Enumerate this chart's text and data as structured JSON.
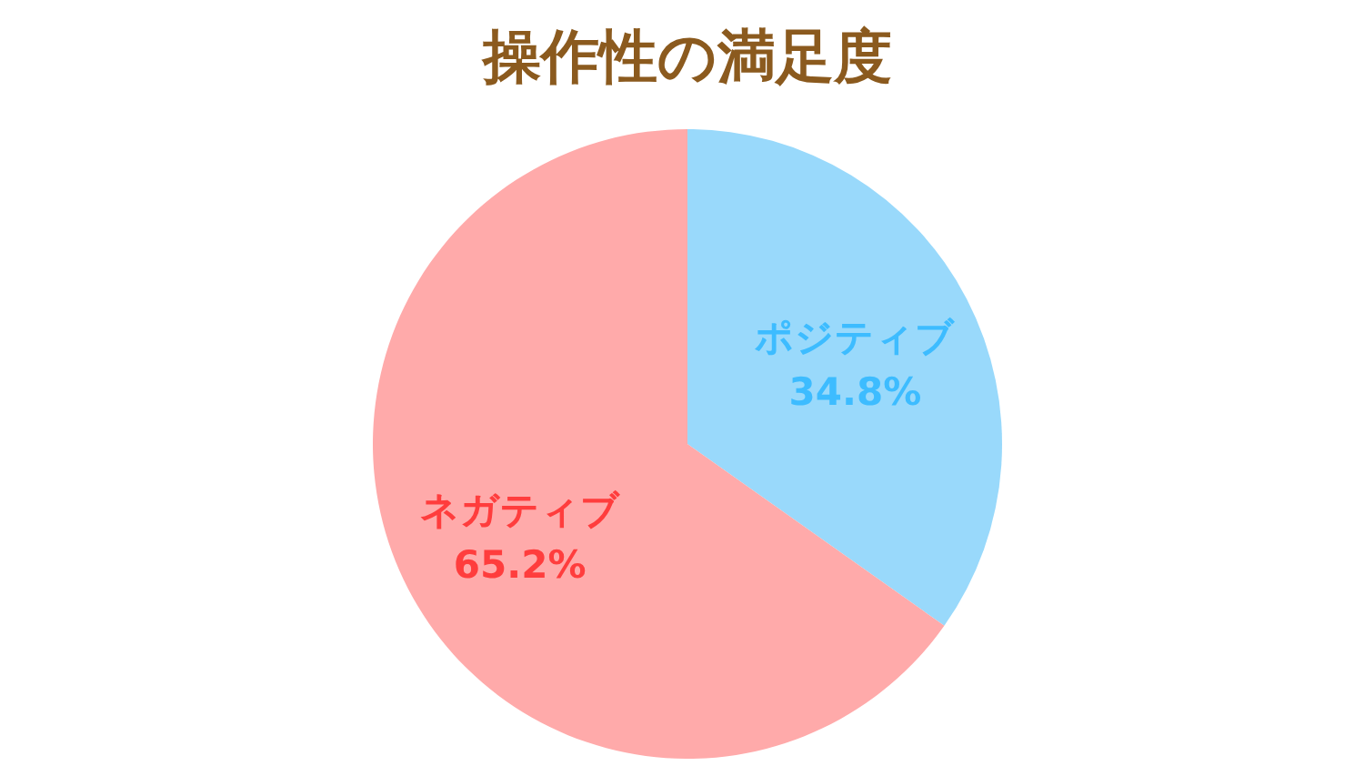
{
  "chart_data": {
    "type": "pie",
    "title": "操作性の満足度",
    "categories": [
      "ポジティブ",
      "ネガティブ"
    ],
    "values": [
      34.8,
      65.2
    ],
    "colors": [
      "#99d9fb",
      "#ffaaaa"
    ],
    "value_labels": [
      "34.8%",
      "65.2%"
    ],
    "legend": false
  }
}
